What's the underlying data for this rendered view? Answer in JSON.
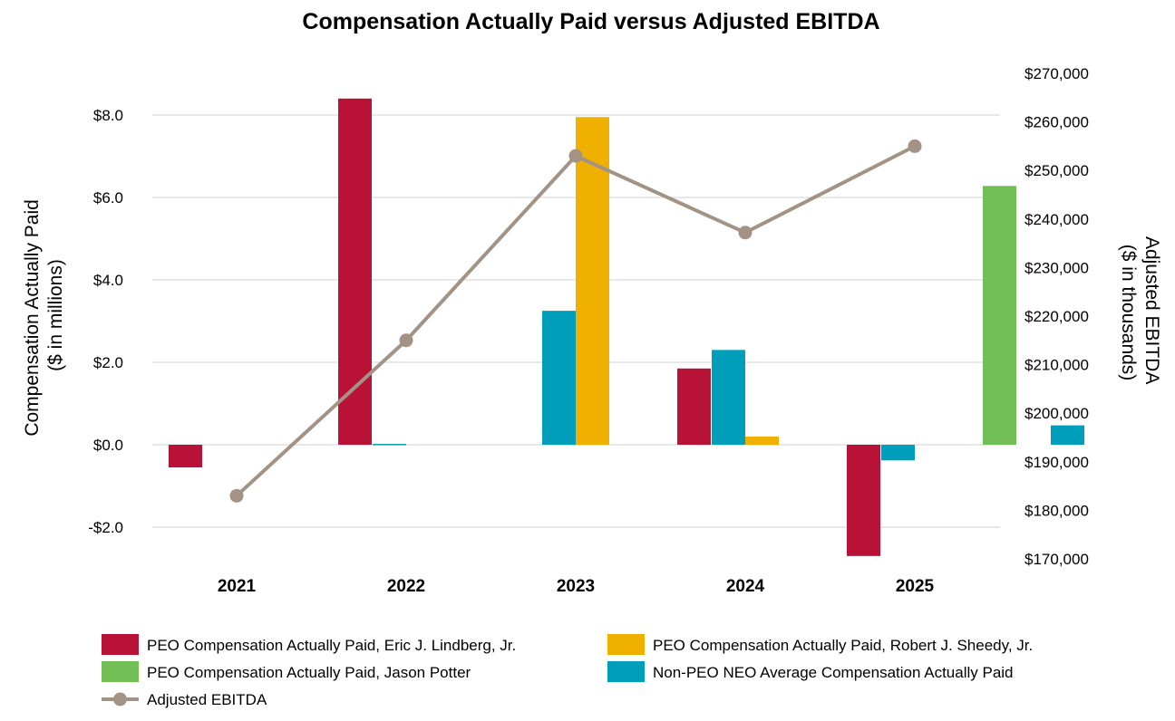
{
  "chart_data": {
    "type": "bar",
    "title": "Compensation Actually Paid versus Adjusted EBITDA",
    "categories": [
      "2021",
      "2022",
      "2023",
      "2024",
      "2025"
    ],
    "y_left": {
      "label_line1": "Compensation Actually Paid",
      "label_line2": "($ in millions)",
      "ticks": [
        -2,
        0,
        2,
        4,
        6,
        8
      ],
      "tick_labels": [
        "-$2.0",
        "$0.0",
        "$2.0",
        "$4.0",
        "$6.0",
        "$8.0"
      ],
      "range": [
        -2.7,
        8.5
      ]
    },
    "y_right": {
      "label_line1": "Adjusted EBITDA",
      "label_line2": "($ in thousands)",
      "ticks": [
        170000,
        180000,
        190000,
        200000,
        210000,
        220000,
        230000,
        240000,
        250000,
        260000,
        270000
      ],
      "tick_labels": [
        "$170,000",
        "$180,000",
        "$190,000",
        "$200,000",
        "$210,000",
        "$220,000",
        "$230,000",
        "$240,000",
        "$250,000",
        "$260,000",
        "$270,000"
      ]
    },
    "series": [
      {
        "name": "PEO Compensation Actually Paid, Eric J. Lindberg, Jr.",
        "type": "bar",
        "color": "#B81237",
        "values": [
          -0.55,
          8.4,
          null,
          1.85,
          -2.7
        ]
      },
      {
        "name": "PEO Compensation Actually Paid, Robert J. Sheedy, Jr.",
        "type": "bar",
        "color": "#F0B000",
        "values": [
          null,
          null,
          7.95,
          0.2,
          null
        ]
      },
      {
        "name": "PEO Compensation Actually Paid, Jason Potter",
        "type": "bar",
        "color": "#72BF56",
        "values": [
          null,
          null,
          null,
          null,
          6.28
        ]
      },
      {
        "name": "Non-PEO NEO Average Compensation Actually Paid",
        "type": "bar",
        "color": "#009EBA",
        "values": [
          0.02,
          3.25,
          2.3,
          -0.38,
          0.47
        ]
      },
      {
        "name": "Adjusted EBITDA",
        "type": "line",
        "axis": "right",
        "color": "#A39385",
        "values": [
          183000,
          215000,
          253000,
          237200,
          255000
        ]
      }
    ],
    "grid": true,
    "legend_position": "bottom"
  }
}
